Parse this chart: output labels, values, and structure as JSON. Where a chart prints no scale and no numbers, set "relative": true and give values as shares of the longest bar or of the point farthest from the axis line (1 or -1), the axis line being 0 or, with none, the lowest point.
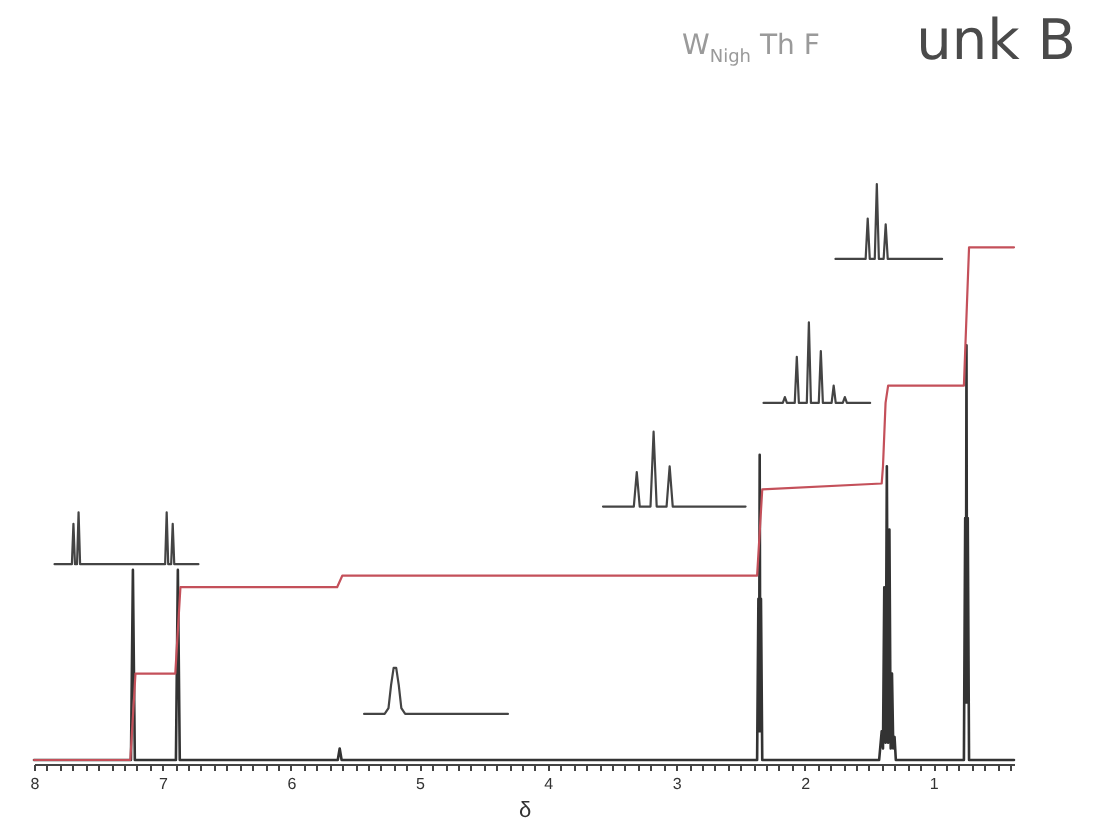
{
  "chart_data": {
    "type": "line",
    "title": "unk B",
    "xlabel": "δ",
    "annotations": [
      "W$_{Nigh}$ Th F"
    ],
    "relative": true,
    "tick_labels": "x",
    "xlim": [
      8,
      0.37
    ],
    "xticks": [
      8,
      {
        "value": 7.9,
        "label": null
      },
      {
        "value": 7.8,
        "label": null
      },
      {
        "value": 7.7,
        "label": null
      },
      {
        "value": 7.6,
        "label": null
      },
      {
        "value": 7.5,
        "label": null
      },
      {
        "value": 7.4,
        "label": null
      },
      {
        "value": 7.3,
        "label": null
      },
      {
        "value": 7.2,
        "label": null
      },
      {
        "value": 7.1,
        "label": null
      },
      7,
      {
        "value": 6.9,
        "label": null
      },
      {
        "value": 6.8,
        "label": null
      },
      {
        "value": 6.7,
        "label": null
      },
      {
        "value": 6.6,
        "label": null
      },
      {
        "value": 6.5,
        "label": null
      },
      {
        "value": 6.4,
        "label": null
      },
      {
        "value": 6.3,
        "label": null
      },
      {
        "value": 6.2,
        "label": null
      },
      {
        "value": 6.1,
        "label": null
      },
      6,
      {
        "value": 5.9,
        "label": null
      },
      {
        "value": 5.8,
        "label": null
      },
      {
        "value": 5.7,
        "label": null
      },
      {
        "value": 5.6,
        "label": null
      },
      {
        "value": 5.5,
        "label": null
      },
      {
        "value": 5.4,
        "label": null
      },
      {
        "value": 5.3,
        "label": null
      },
      {
        "value": 5.2,
        "label": null
      },
      {
        "value": 5.1,
        "label": null
      },
      5,
      {
        "value": 4.9,
        "label": null
      },
      {
        "value": 4.8,
        "label": null
      },
      {
        "value": 4.7,
        "label": null
      },
      {
        "value": 4.6,
        "label": null
      },
      {
        "value": 4.5,
        "label": null
      },
      {
        "value": 4.4,
        "label": null
      },
      {
        "value": 4.3,
        "label": null
      },
      {
        "value": 4.2,
        "label": null
      },
      {
        "value": 4.1,
        "label": null
      },
      4,
      {
        "value": 3.9,
        "label": null
      },
      {
        "value": 3.8,
        "label": null
      },
      {
        "value": 3.7,
        "label": null
      },
      {
        "value": 3.6,
        "label": null
      },
      {
        "value": 3.5,
        "label": null
      },
      {
        "value": 3.4,
        "label": null
      },
      {
        "value": 3.3,
        "label": null
      },
      {
        "value": 3.2,
        "label": null
      },
      {
        "value": 3.1,
        "label": null
      },
      3,
      {
        "value": 2.9,
        "label": null
      },
      {
        "value": 2.8,
        "label": null
      },
      {
        "value": 2.7,
        "label": null
      },
      {
        "value": 2.6,
        "label": null
      },
      {
        "value": 2.5,
        "label": null
      },
      {
        "value": 2.4,
        "label": null
      },
      {
        "value": 2.3,
        "label": null
      },
      {
        "value": 2.2,
        "label": null
      },
      {
        "value": 2.1,
        "label": null
      },
      2,
      {
        "value": 1.9,
        "label": null
      },
      {
        "value": 1.8,
        "label": null
      },
      {
        "value": 1.7,
        "label": null
      },
      {
        "value": 1.6,
        "label": null
      },
      {
        "value": 1.5,
        "label": null
      },
      {
        "value": 1.4,
        "label": null
      },
      {
        "value": 1.3,
        "label": null
      },
      {
        "value": 1.2,
        "label": null
      },
      {
        "value": 1.1,
        "label": null
      },
      1,
      {
        "value": 0.9,
        "label": null
      },
      {
        "value": 0.8,
        "label": null
      },
      {
        "value": 0.7,
        "label": null
      },
      {
        "value": 0.6,
        "label": null
      },
      {
        "value": 0.5,
        "label": null
      },
      {
        "value": 0.4,
        "label": null
      }
    ],
    "series": [
      {
        "color": "#333333",
        "x": [
          8,
          7.245,
          7.23,
          7.215,
          6.895,
          6.88,
          6.865,
          5.635,
          5.62,
          5.605,
          2.37,
          2.36,
          2.355,
          2.35,
          2.345,
          2.34,
          2.33,
          1.42,
          1.4,
          1.39,
          1.38,
          1.37,
          1.36,
          1.35,
          1.34,
          1.33,
          1.32,
          1.31,
          1.3,
          1.29,
          0.76,
          0.75,
          0.745,
          0.74,
          0.735,
          0.73,
          0.72,
          0.37
        ],
        "values": [
          0,
          0,
          0.33,
          0,
          0,
          0.33,
          0,
          0,
          0.02,
          0,
          0,
          0.28,
          0.05,
          0.53,
          0.05,
          0.28,
          0,
          0,
          0.05,
          0.02,
          0.3,
          0.03,
          0.51,
          0.03,
          0.4,
          0.02,
          0.15,
          0.02,
          0.04,
          0,
          0,
          0.42,
          0.1,
          0.72,
          0.1,
          0.42,
          0,
          0
        ]
      },
      {
        "color": "#c4505a",
        "x": [
          8,
          7.25,
          7.21,
          6.9,
          6.86,
          5.64,
          5.6,
          2.37,
          2.33,
          1.4,
          1.39,
          1.37,
          1.35,
          0.76,
          0.72,
          0.37
        ],
        "values": [
          0,
          0,
          0.15,
          0.15,
          0.3,
          0.3,
          0.32,
          0.32,
          0.47,
          0.48,
          0.51,
          0.62,
          0.65,
          0.65,
          0.89,
          0.89
        ]
      },
      {
        "color": "#444444",
        "x": [
          7.84,
          7.705,
          7.693,
          7.681,
          7.665,
          7.653,
          7.641,
          6.979,
          6.967,
          6.955,
          6.932,
          6.92,
          6.908,
          6.72
        ],
        "values": [
          0.34,
          0.34,
          0.41,
          0.34,
          0.34,
          0.43,
          0.34,
          0.34,
          0.43,
          0.34,
          0.34,
          0.41,
          0.34,
          0.34
        ]
      },
      {
        "color": "#444444",
        "x": [
          5.43,
          5.27,
          5.24,
          5.22,
          5.2,
          5.19,
          5.18,
          5.16,
          5.14,
          5.11,
          4.31
        ],
        "values": [
          0.08,
          0.08,
          0.09,
          0.13,
          0.16,
          0.16,
          0.16,
          0.13,
          0.09,
          0.08,
          0.08
        ]
      },
      {
        "color": "#444444",
        "x": [
          3.57,
          3.33,
          3.307,
          3.284,
          3.2,
          3.176,
          3.152,
          3.075,
          3.051,
          3.027,
          2.46
        ],
        "values": [
          0.44,
          0.44,
          0.5,
          0.44,
          0.44,
          0.57,
          0.44,
          0.44,
          0.51,
          0.44,
          0.44
        ]
      },
      {
        "color": "#444444",
        "x": [
          2.32,
          2.17,
          2.154,
          2.138,
          2.077,
          2.061,
          2.045,
          1.983,
          1.967,
          1.951,
          1.89,
          1.874,
          1.858,
          1.79,
          1.774,
          1.758,
          1.703,
          1.687,
          1.671,
          1.49
        ],
        "values": [
          0.62,
          0.62,
          0.63,
          0.62,
          0.62,
          0.7,
          0.62,
          0.62,
          0.76,
          0.62,
          0.62,
          0.71,
          0.62,
          0.62,
          0.65,
          0.62,
          0.62,
          0.63,
          0.62,
          0.62
        ]
      },
      {
        "color": "#444444",
        "x": [
          1.76,
          1.525,
          1.509,
          1.493,
          1.454,
          1.438,
          1.422,
          1.385,
          1.369,
          1.353,
          0.93
        ],
        "values": [
          0.87,
          0.87,
          0.94,
          0.87,
          0.87,
          1,
          0.87,
          0.87,
          0.93,
          0.87,
          0.87
        ]
      }
    ]
  }
}
